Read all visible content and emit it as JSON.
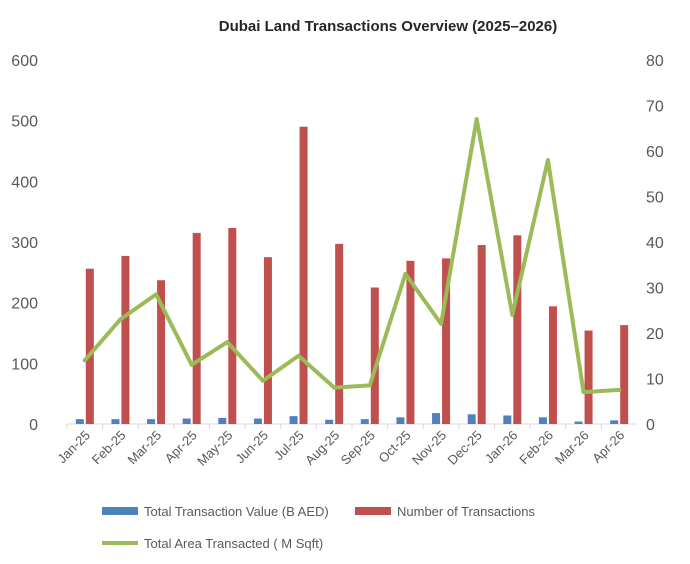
{
  "chart_data": {
    "type": "bar",
    "title": "Dubai Land Transactions Overview (2025–2026)",
    "categories": [
      "Jan-25",
      "Feb-25",
      "Mar-25",
      "Apr-25",
      "May-25",
      "Jun-25",
      "Jul-25",
      "Aug-25",
      "Sep-25",
      "Oct-25",
      "Nov-25",
      "Dec-25",
      "Jan-26",
      "Feb-26",
      "Mar-26",
      "Apr-26"
    ],
    "series": [
      {
        "name": "Total Transaction Value (B AED)",
        "type": "bar",
        "axis": "left",
        "color": "#4f81bd",
        "values": [
          8,
          8,
          8,
          9,
          10,
          9,
          13,
          7,
          8,
          11,
          18,
          16,
          14,
          11,
          4,
          6
        ]
      },
      {
        "name": "Number of Transactions",
        "type": "bar",
        "axis": "left",
        "color": "#c0504d",
        "values": [
          256,
          277,
          237,
          315,
          323,
          275,
          490,
          297,
          225,
          269,
          273,
          295,
          311,
          194,
          154,
          163
        ]
      },
      {
        "name": "Total Area Transacted ( M Sqft)",
        "type": "line",
        "axis": "right",
        "color": "#9bbb59",
        "values": [
          14,
          23,
          28.5,
          13,
          18,
          9.5,
          15,
          8,
          8.5,
          33,
          22,
          67,
          24,
          58,
          7,
          7.5
        ]
      }
    ],
    "y_left": {
      "min": 0,
      "max": 600,
      "ticks": [
        0,
        100,
        200,
        300,
        400,
        500,
        600
      ]
    },
    "y_right": {
      "min": 0,
      "max": 80,
      "ticks": [
        0,
        10,
        20,
        30,
        40,
        50,
        60,
        70,
        80
      ]
    },
    "grid": false,
    "legend_position": "bottom"
  }
}
